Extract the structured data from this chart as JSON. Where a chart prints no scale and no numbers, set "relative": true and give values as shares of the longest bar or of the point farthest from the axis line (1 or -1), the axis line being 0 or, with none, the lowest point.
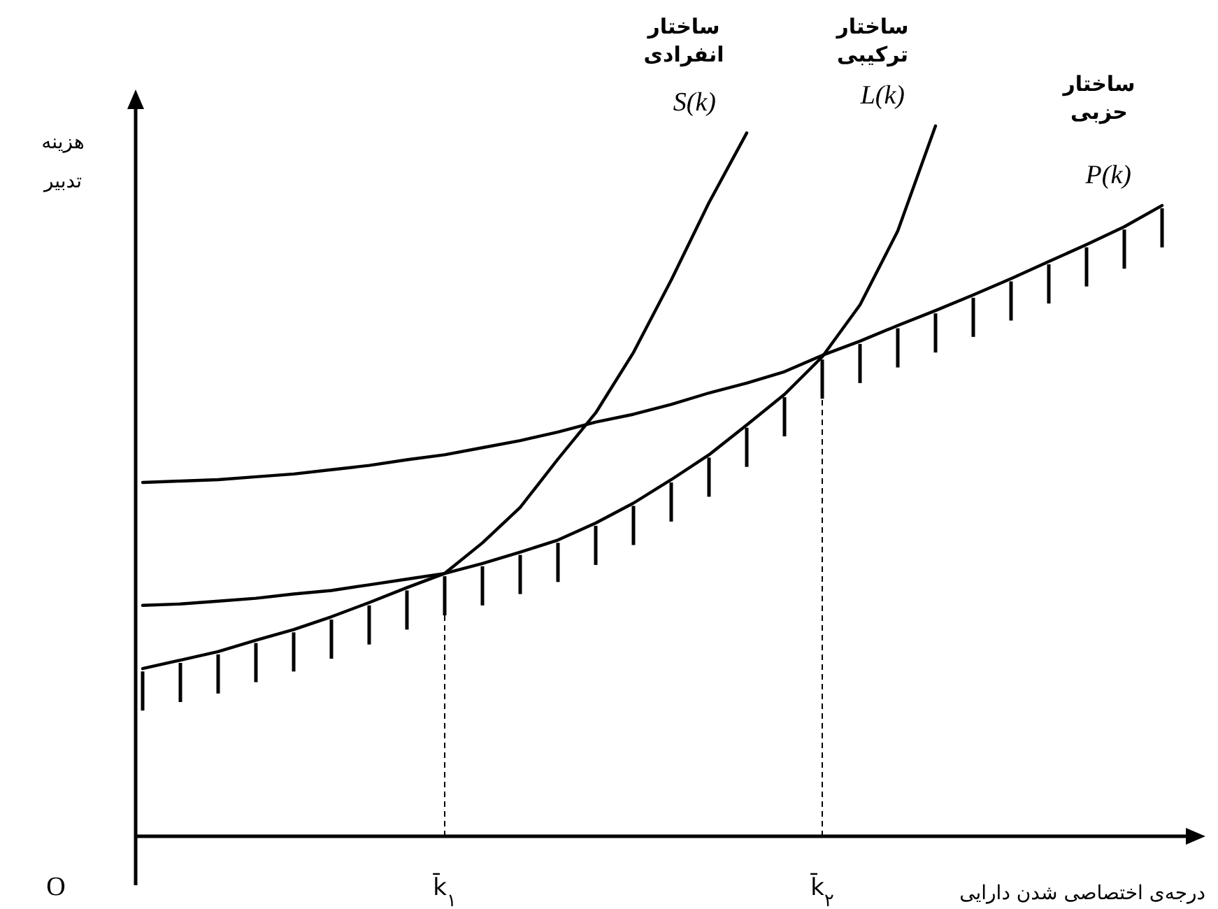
{
  "chart_data": {
    "type": "line",
    "relative": true,
    "xlabel": "درجه‌ی اختصاصی شدن دارایی",
    "ylabel": "هزینه تدبیر",
    "categories": [
      null,
      null,
      null,
      null,
      null,
      null,
      null,
      null,
      "k̄$_{۱}$",
      null,
      null,
      null,
      null,
      null,
      null,
      null,
      null,
      null,
      "k̄$_{۲}$",
      null,
      null,
      null,
      null,
      null,
      null,
      null,
      null,
      null
    ],
    "series": [
      {
        "name": "S(k)",
        "color": "#000000",
        "values": [
          0.236,
          0.248,
          0.26,
          0.276,
          0.291,
          0.309,
          0.329,
          0.35,
          0.37,
          0.413,
          0.463,
          0.531,
          0.596,
          0.681,
          0.783,
          0.892,
          0.99,
          null,
          null,
          null,
          null,
          null,
          null,
          null,
          null,
          null,
          null,
          null
        ]
      },
      {
        "name": "L(k)",
        "color": "#000000",
        "values": [
          0.325,
          0.327,
          0.331,
          0.335,
          0.341,
          0.346,
          0.354,
          0.362,
          0.37,
          0.384,
          0.4,
          0.417,
          0.441,
          0.469,
          0.502,
          0.537,
          0.579,
          0.622,
          0.675,
          0.748,
          0.852,
          1,
          null,
          null,
          null,
          null,
          null,
          null
        ]
      },
      {
        "name": "P(k)",
        "color": "#000000",
        "values": [
          0.498,
          0.5,
          0.502,
          0.506,
          0.51,
          0.516,
          0.522,
          0.53,
          0.537,
          0.547,
          0.557,
          0.569,
          0.583,
          0.594,
          0.608,
          0.624,
          0.638,
          0.654,
          0.677,
          0.697,
          0.719,
          0.74,
          0.762,
          0.785,
          0.809,
          0.833,
          0.858,
          0.888
        ]
      }
    ],
    "annotations": [
      "ساختار انفرادی",
      "ساختار ترکیبی",
      "ساختار حزبی",
      "O"
    ],
    "ref_lines": [
      {
        "axis": "x",
        "value": "k̄$_{۱}$",
        "line_style": "dashed"
      },
      {
        "axis": "x",
        "value": "k̄$_{۲}$",
        "line_style": "dashed"
      }
    ]
  }
}
